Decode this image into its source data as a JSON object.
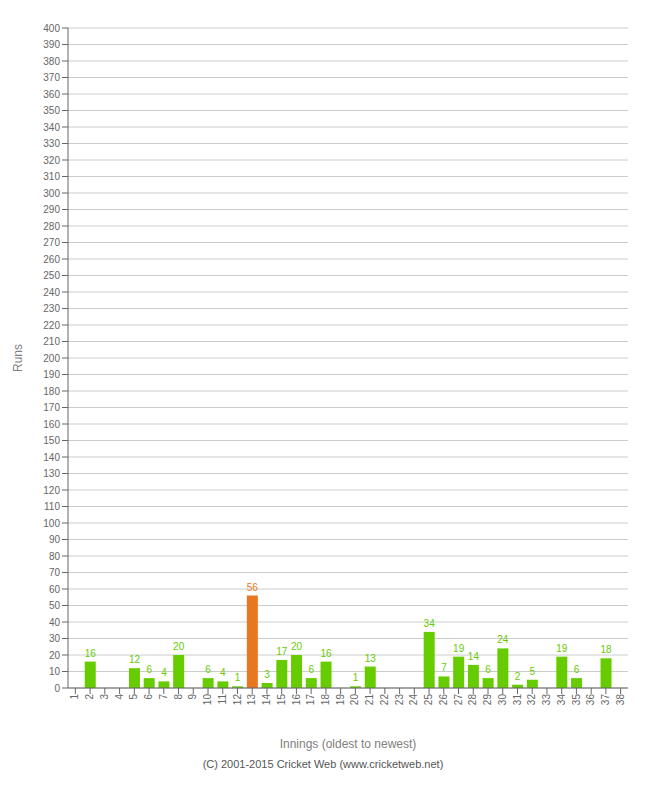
{
  "chart_data": {
    "type": "bar",
    "xlabel": "Innings (oldest to newest)",
    "ylabel": "Runs",
    "categories": [
      "1",
      "2",
      "3",
      "4",
      "5",
      "6",
      "7",
      "8",
      "9",
      "10",
      "11",
      "12",
      "13",
      "14",
      "15",
      "16",
      "17",
      "18",
      "19",
      "20",
      "21",
      "22",
      "23",
      "24",
      "25",
      "26",
      "27",
      "28",
      "29",
      "30",
      "31",
      "32",
      "33",
      "34",
      "35",
      "36",
      "37",
      "38"
    ],
    "values": [
      0,
      16,
      0,
      0,
      12,
      6,
      4,
      20,
      0,
      6,
      4,
      1,
      56,
      3,
      17,
      20,
      6,
      16,
      0,
      1,
      13,
      0,
      0,
      0,
      34,
      7,
      19,
      14,
      6,
      24,
      2,
      5,
      0,
      19,
      6,
      0,
      18,
      0
    ],
    "colors": [
      "#66cc00",
      "#66cc00",
      "#66cc00",
      "#66cc00",
      "#66cc00",
      "#66cc00",
      "#66cc00",
      "#66cc00",
      "#66cc00",
      "#66cc00",
      "#66cc00",
      "#66cc00",
      "#e87722",
      "#66cc00",
      "#66cc00",
      "#66cc00",
      "#66cc00",
      "#66cc00",
      "#66cc00",
      "#66cc00",
      "#66cc00",
      "#66cc00",
      "#66cc00",
      "#66cc00",
      "#66cc00",
      "#66cc00",
      "#66cc00",
      "#66cc00",
      "#66cc00",
      "#66cc00",
      "#66cc00",
      "#66cc00",
      "#66cc00",
      "#66cc00",
      "#66cc00",
      "#66cc00",
      "#66cc00",
      "#66cc00"
    ],
    "ylim": [
      0,
      400
    ],
    "yticks": [
      0,
      10,
      20,
      30,
      40,
      50,
      60,
      70,
      80,
      90,
      100,
      110,
      120,
      130,
      140,
      150,
      160,
      170,
      180,
      190,
      200,
      210,
      220,
      230,
      240,
      250,
      260,
      270,
      280,
      290,
      300,
      310,
      320,
      330,
      340,
      350,
      360,
      370,
      380,
      390,
      400
    ],
    "grid": true,
    "data_labels": true,
    "annotations": [
      "(C) 2001-2015 Cricket Web (www.cricketweb.net)"
    ]
  }
}
